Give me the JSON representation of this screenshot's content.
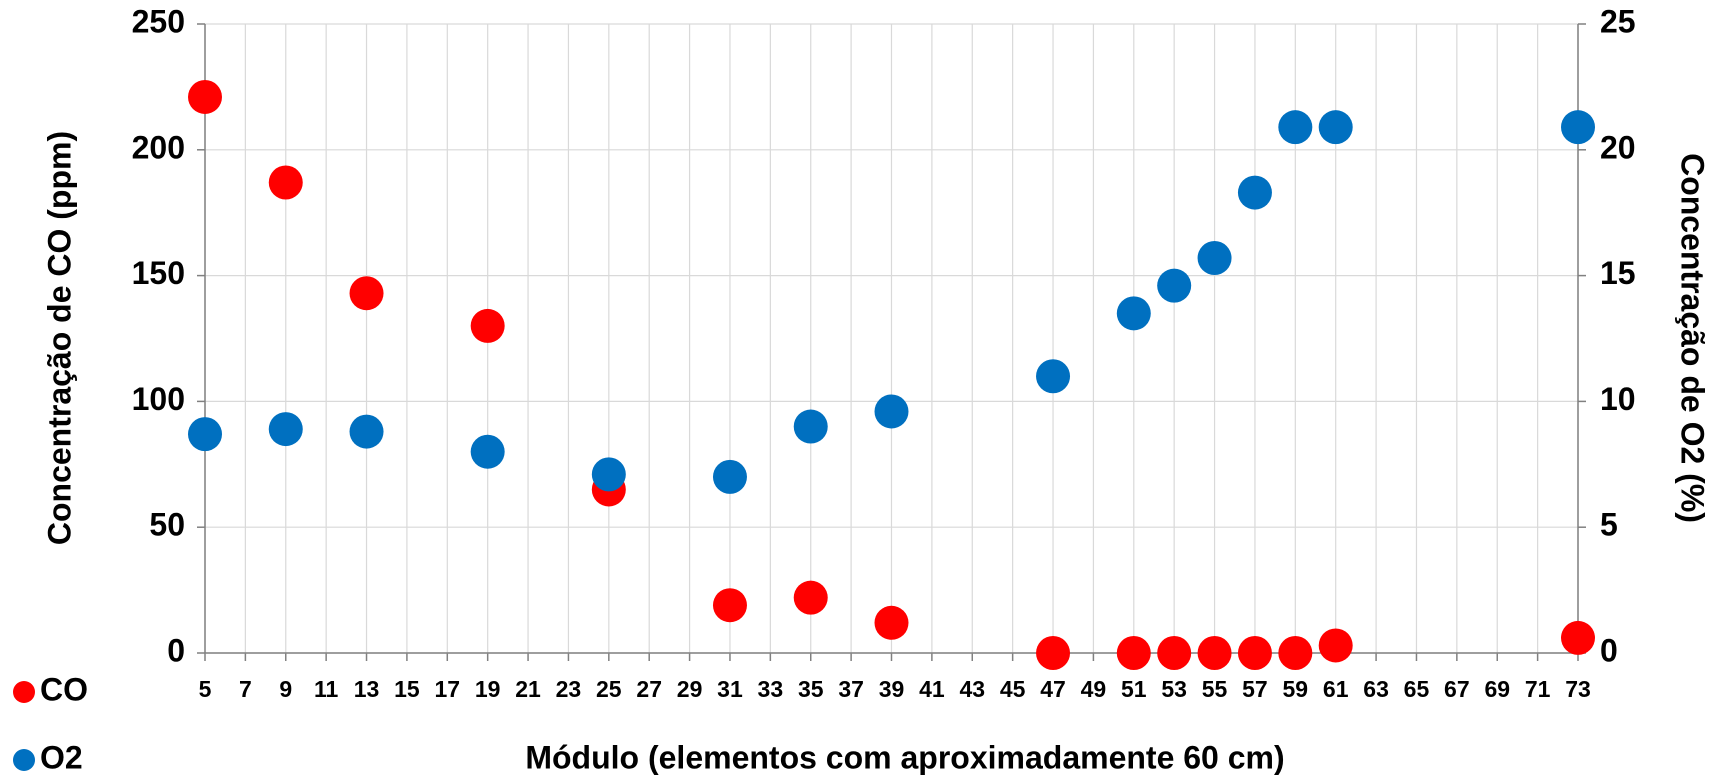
{
  "chart_data": {
    "type": "scatter",
    "x_label": "Módulo (elementos com aproximadamente 60 cm)",
    "y_label": "Concentração de CO (ppm)",
    "y2_label": "Concentração de O2 (%)",
    "xlim": [
      5,
      73
    ],
    "xticks": [
      5,
      7,
      9,
      11,
      13,
      15,
      17,
      19,
      21,
      23,
      25,
      27,
      29,
      31,
      33,
      35,
      37,
      39,
      41,
      43,
      45,
      47,
      49,
      51,
      53,
      55,
      57,
      59,
      61,
      63,
      65,
      67,
      69,
      71,
      73
    ],
    "ylim": [
      0,
      250
    ],
    "yticks": [
      0,
      50,
      100,
      150,
      200,
      250
    ],
    "y2lim": [
      0,
      25
    ],
    "y2ticks": [
      0,
      5,
      10,
      15,
      20,
      25
    ],
    "grid": true,
    "legend": "bottom-left",
    "series": [
      {
        "name": "CO",
        "color": "#ff0000",
        "x": [
          5,
          9,
          13,
          19,
          25,
          31,
          35,
          39,
          47,
          51,
          53,
          55,
          57,
          59,
          61,
          73
        ],
        "values": [
          221,
          187,
          143,
          130,
          65,
          19,
          22,
          12,
          0,
          0,
          0,
          0,
          0,
          0,
          3,
          6
        ]
      },
      {
        "name": "O2",
        "color": "#0070c0",
        "axis": "y2",
        "x": [
          5,
          9,
          13,
          19,
          25,
          31,
          35,
          39,
          47,
          51,
          53,
          55,
          57,
          59,
          61,
          73
        ],
        "values": [
          8.7,
          8.9,
          8.8,
          8.0,
          7.1,
          7.0,
          9.0,
          9.6,
          11.0,
          13.5,
          14.6,
          15.7,
          18.3,
          20.9,
          20.9,
          20.9
        ]
      }
    ]
  }
}
